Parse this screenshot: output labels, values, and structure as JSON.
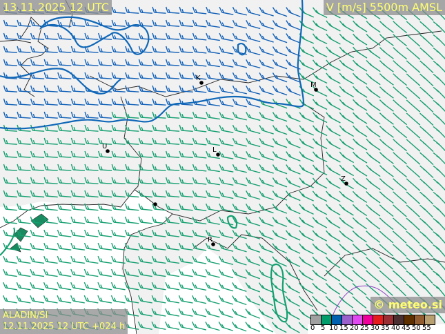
{
  "header": {
    "valid_time": "13.11.2025 12 UTC",
    "parameter": "V [m/s] 5500m AMSL"
  },
  "footer": {
    "model": "ALADIN/SI",
    "run_info": "12.11.2025 12 UTC +024 h",
    "copyright": "© meteo.si"
  },
  "legend": {
    "colors": [
      "#a0a0a0",
      "#009c6a",
      "#0060b0",
      "#9a60cc",
      "#e048f0",
      "#f0009a",
      "#e41c1c",
      "#9a3034",
      "#4a3030",
      "#5e3000",
      "#905c30",
      "#b8a070"
    ],
    "labels": [
      "0",
      "5",
      "10",
      "15",
      "20",
      "25",
      "30",
      "35",
      "40",
      "45",
      "50",
      "55"
    ]
  },
  "colors": {
    "wind_5_10": "#14a070",
    "wind_10_15": "#1060b8",
    "contour_10": "#1068b8",
    "contour_5": "#14a070",
    "coast": "#222222",
    "sea": "#ffffff",
    "land": "#f0f0f0"
  },
  "cities": [
    {
      "label": "K"
    },
    {
      "label": "M"
    },
    {
      "label": "U"
    },
    {
      "label": "L"
    },
    {
      "label": "Z"
    },
    {
      "label": "R"
    },
    {
      "label": ""
    }
  ]
}
